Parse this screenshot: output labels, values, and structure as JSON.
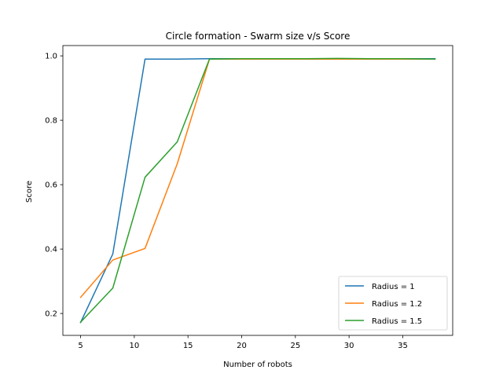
{
  "chart_data": {
    "type": "line",
    "title": "Circle formation - Swarm size v/s Score",
    "xlabel": "Number of robots",
    "ylabel": "Score",
    "xlim": [
      3.35,
      39.65
    ],
    "ylim": [
      0.132,
      1.032
    ],
    "xticks": [
      5,
      10,
      15,
      20,
      25,
      30,
      35
    ],
    "yticks": [
      0.2,
      0.4,
      0.6,
      0.8,
      1.0
    ],
    "ytick_labels": [
      "0.2",
      "0.4",
      "0.6",
      "0.8",
      "1.0"
    ],
    "grid": false,
    "legend_position": "lower-right",
    "x": [
      5,
      8,
      11,
      14,
      17,
      20,
      23,
      26,
      29,
      32,
      35,
      38
    ],
    "series": [
      {
        "name": "Radius = 1",
        "color": "#1f77b4",
        "values": [
          0.172,
          0.385,
          0.99,
          0.99,
          0.991,
          0.991,
          0.991,
          0.991,
          0.991,
          0.991,
          0.991,
          0.991
        ]
      },
      {
        "name": "Radius = 1.2",
        "color": "#ff7f0e",
        "values": [
          0.25,
          0.366,
          0.402,
          0.665,
          0.99,
          0.99,
          0.99,
          0.99,
          0.99,
          0.99,
          0.99,
          0.99
        ]
      },
      {
        "name": "Radius = 1.5",
        "color": "#2ca02c",
        "values": [
          0.173,
          0.279,
          0.623,
          0.733,
          0.99,
          0.991,
          0.991,
          0.991,
          0.992,
          0.991,
          0.991,
          0.99
        ]
      }
    ]
  }
}
